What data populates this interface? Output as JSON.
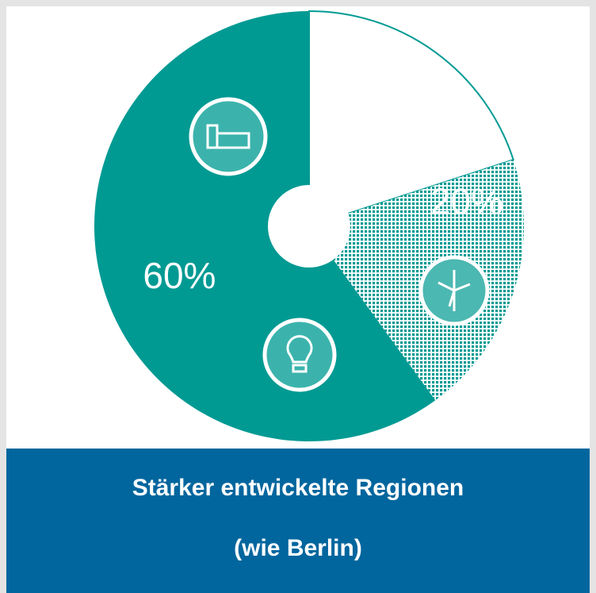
{
  "chart_data": {
    "type": "pie",
    "values": [
      20,
      20,
      60
    ],
    "value_labels": [
      null,
      "20%",
      "60%"
    ],
    "colors": [
      "#ffffff",
      "#009a93",
      "#009a93"
    ],
    "patterns": [
      null,
      "dots",
      null
    ],
    "donut_hole": true,
    "title": "Stärker entwickelte Regionen",
    "subtitle": "(wie Berlin)"
  }
}
